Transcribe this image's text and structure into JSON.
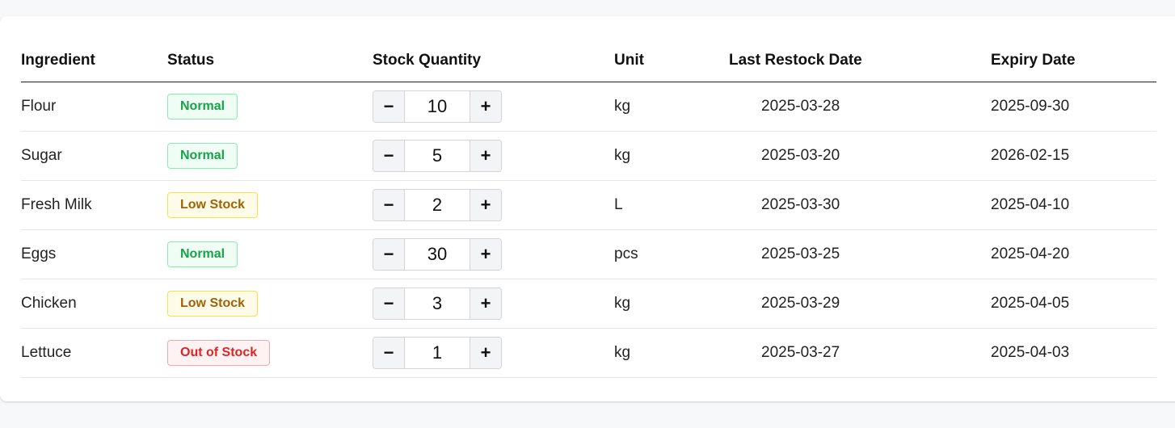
{
  "table": {
    "headers": {
      "ingredient": "Ingredient",
      "status": "Status",
      "stock_quantity": "Stock Quantity",
      "unit": "Unit",
      "last_restock": "Last Restock Date",
      "expiry": "Expiry Date"
    },
    "rows": [
      {
        "ingredient": "Flour",
        "status": "Normal",
        "quantity": "10",
        "unit": "kg",
        "last_restock": "2025-03-28",
        "expiry": "2025-09-30"
      },
      {
        "ingredient": "Sugar",
        "status": "Normal",
        "quantity": "5",
        "unit": "kg",
        "last_restock": "2025-03-20",
        "expiry": "2026-02-15"
      },
      {
        "ingredient": "Fresh Milk",
        "status": "Low Stock",
        "quantity": "2",
        "unit": "L",
        "last_restock": "2025-03-30",
        "expiry": "2025-04-10"
      },
      {
        "ingredient": "Eggs",
        "status": "Normal",
        "quantity": "30",
        "unit": "pcs",
        "last_restock": "2025-03-25",
        "expiry": "2025-04-20"
      },
      {
        "ingredient": "Chicken",
        "status": "Low Stock",
        "quantity": "3",
        "unit": "kg",
        "last_restock": "2025-03-29",
        "expiry": "2025-04-05"
      },
      {
        "ingredient": "Lettuce",
        "status": "Out of Stock",
        "quantity": "1",
        "unit": "kg",
        "last_restock": "2025-03-27",
        "expiry": "2025-04-03"
      }
    ]
  },
  "stepper": {
    "minus_label": "−",
    "plus_label": "+"
  },
  "icons": {
    "decrement": "minus-icon",
    "increment": "plus-icon"
  },
  "colors": {
    "normal": "#16a34a",
    "low_stock": "#a16207",
    "out_of_stock": "#dc2626"
  }
}
